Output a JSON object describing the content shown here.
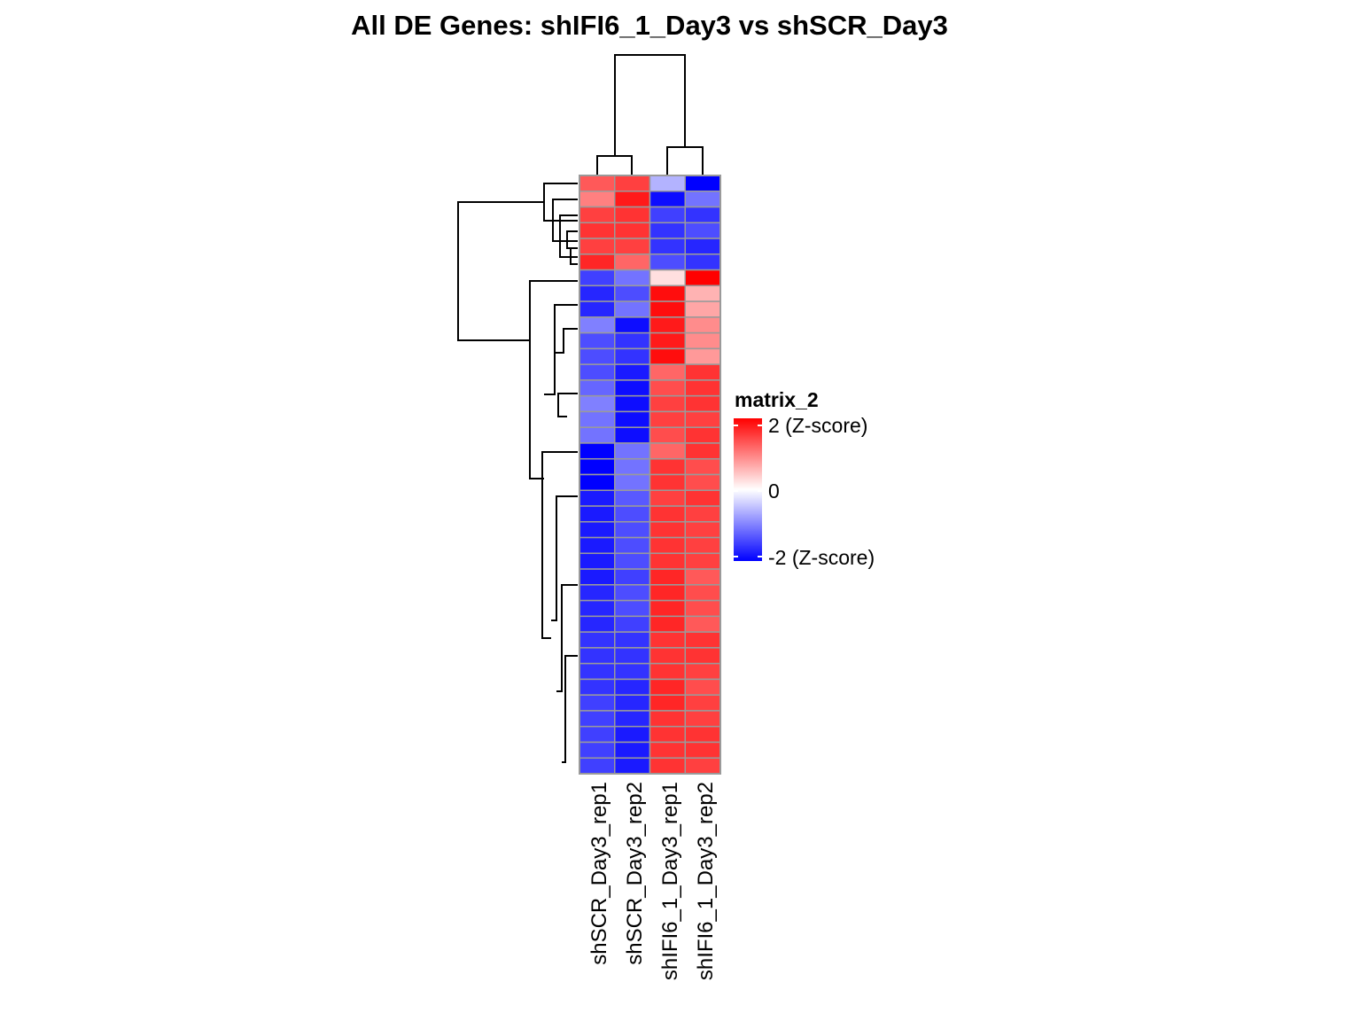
{
  "chart_data": {
    "type": "heatmap",
    "title": "All DE Genes: shIFI6_1_Day3  vs  shSCR_Day3",
    "columns": [
      "shSCR_Day3_rep1",
      "shSCR_Day3_rep2",
      "shIFI6_1_Day3_rep1",
      "shIFI6_1_Day3_rep2"
    ],
    "values": [
      [
        1.3,
        1.5,
        -0.6,
        -2.0
      ],
      [
        1.0,
        1.8,
        -1.9,
        -1.1
      ],
      [
        1.5,
        1.6,
        -1.5,
        -1.6
      ],
      [
        1.6,
        1.6,
        -1.6,
        -1.4
      ],
      [
        1.5,
        1.5,
        -1.6,
        -1.7
      ],
      [
        1.7,
        1.2,
        -1.4,
        -1.6
      ],
      [
        -1.5,
        -1.1,
        0.25,
        2.0
      ],
      [
        -1.7,
        -1.4,
        1.9,
        0.6
      ],
      [
        -1.7,
        -1.1,
        1.9,
        0.7
      ],
      [
        -1.0,
        -1.9,
        1.8,
        0.9
      ],
      [
        -1.4,
        -1.6,
        1.8,
        0.9
      ],
      [
        -1.4,
        -1.6,
        1.9,
        0.8
      ],
      [
        -1.4,
        -1.8,
        1.2,
        1.6
      ],
      [
        -1.2,
        -1.9,
        1.4,
        1.6
      ],
      [
        -1.0,
        -1.9,
        1.5,
        1.6
      ],
      [
        -1.1,
        -1.9,
        1.5,
        1.5
      ],
      [
        -1.1,
        -1.9,
        1.4,
        1.6
      ],
      [
        -2.0,
        -1.1,
        1.2,
        1.6
      ],
      [
        -2.0,
        -1.1,
        1.6,
        1.4
      ],
      [
        -2.0,
        -1.1,
        1.6,
        1.4
      ],
      [
        -1.8,
        -1.3,
        1.5,
        1.6
      ],
      [
        -1.8,
        -1.4,
        1.6,
        1.5
      ],
      [
        -1.8,
        -1.4,
        1.6,
        1.5
      ],
      [
        -1.8,
        -1.4,
        1.6,
        1.5
      ],
      [
        -1.8,
        -1.4,
        1.6,
        1.5
      ],
      [
        -1.8,
        -1.5,
        1.7,
        1.3
      ],
      [
        -1.7,
        -1.4,
        1.7,
        1.4
      ],
      [
        -1.7,
        -1.4,
        1.7,
        1.4
      ],
      [
        -1.7,
        -1.5,
        1.7,
        1.3
      ],
      [
        -1.6,
        -1.6,
        1.6,
        1.6
      ],
      [
        -1.6,
        -1.6,
        1.6,
        1.6
      ],
      [
        -1.6,
        -1.6,
        1.6,
        1.5
      ],
      [
        -1.6,
        -1.7,
        1.7,
        1.4
      ],
      [
        -1.5,
        -1.7,
        1.7,
        1.5
      ],
      [
        -1.5,
        -1.7,
        1.6,
        1.5
      ],
      [
        -1.5,
        -1.8,
        1.6,
        1.6
      ],
      [
        -1.5,
        -1.8,
        1.6,
        1.6
      ],
      [
        -1.5,
        -1.8,
        1.6,
        1.5
      ]
    ],
    "scale": {
      "min": -2,
      "mid": 0,
      "max": 2,
      "low_color": "#0000ff",
      "mid_color": "#ffffff",
      "high_color": "#ff0000"
    },
    "legend": {
      "title": "matrix_2",
      "tick_labels": [
        "2 (Z-score)",
        "0",
        "-2 (Z-score)"
      ],
      "placement": "right"
    },
    "row_dendrogram": true,
    "column_dendrogram": true,
    "cell_border_color": "#9a9a9a"
  }
}
